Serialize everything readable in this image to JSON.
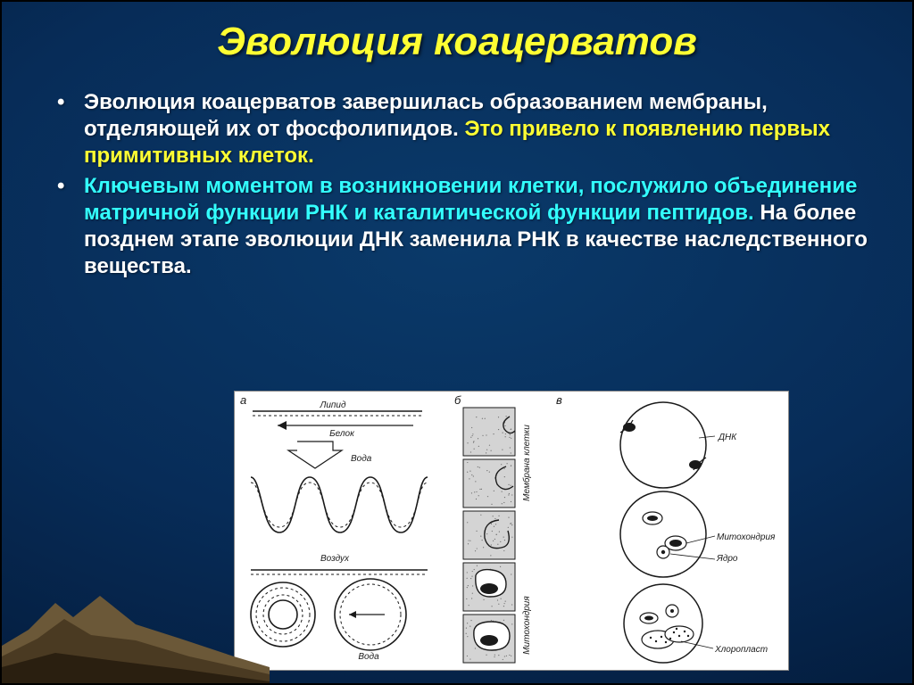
{
  "title": "Эволюция коацерватов",
  "bullets": [
    {
      "spans": [
        {
          "text": "Эволюция коацерватов завершилась образованием мембраны, отделяющей их от фосфолипидов. ",
          "color": "white"
        },
        {
          "text": "Это привело к появлению первых примитивных клеток.",
          "color": "yellow"
        }
      ]
    },
    {
      "spans": [
        {
          "text": "Ключевым моментом в возникновении клетки, послужило объединение матричной функции РНК и каталитической функции пептидов. ",
          "color": "cyan"
        },
        {
          "text": "На более позднем этапе эволюции ДНК заменила РНК в качестве наследственного вещества.",
          "color": "white"
        }
      ]
    }
  ],
  "figure": {
    "panel_labels": {
      "a": "а",
      "b": "б",
      "c": "в"
    },
    "labels_a": {
      "lipid": "Липид",
      "protein": "Белок",
      "water": "Вода",
      "air": "Воздух"
    },
    "labels_b": {
      "membrane": "Мембрана клетки",
      "mito": "Митохондрия"
    },
    "labels_c": {
      "dna": "ДНК",
      "mito": "Митохондрия",
      "nucleus": "Ядро",
      "chloro": "Хлоропласт"
    },
    "colors": {
      "stroke": "#1a1a1a",
      "dashed": "#1a1a1a",
      "fill_grey": "#cfcfcf",
      "fill_dots": "#b8b8b8",
      "bg": "#ffffff"
    }
  },
  "style": {
    "title_color": "#ffff33",
    "title_fontsize": 44,
    "body_fontsize": 24,
    "colors": {
      "white": "#ffffff",
      "yellow": "#ffff33",
      "cyan": "#33ffff"
    },
    "background_gradient": [
      "#0a3a6a",
      "#072c58",
      "#041d3e",
      "#010b22"
    ],
    "terrain_colors": [
      "#6b5838",
      "#4a3a22",
      "#2a1f10"
    ]
  }
}
